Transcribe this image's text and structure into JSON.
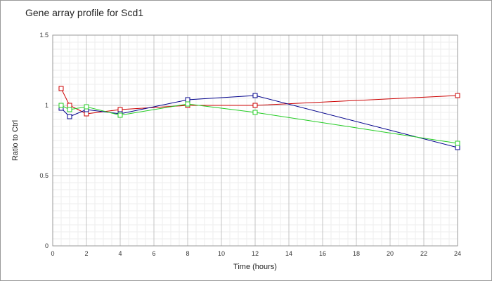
{
  "chart_data": {
    "type": "line",
    "title": "Gene array profile for Scd1",
    "xlabel": "Time (hours)",
    "ylabel": "Ratio to Ctrl",
    "xlim": [
      0,
      24
    ],
    "ylim": [
      0,
      1.5
    ],
    "x_ticks": [
      "0",
      "2",
      "4",
      "6",
      "8",
      "10",
      "12",
      "14",
      "16",
      "18",
      "20",
      "22",
      "24"
    ],
    "y_ticks": [
      "0",
      "0.5",
      "1",
      "1.5"
    ],
    "grid": true,
    "marker": "square",
    "series": [
      {
        "color": "#cc0000",
        "x": [
          0.5,
          1,
          2,
          4,
          8,
          12,
          24
        ],
        "y": [
          1.12,
          1.0,
          0.94,
          0.97,
          1.0,
          1.0,
          1.07
        ]
      },
      {
        "color": "#00008b",
        "x": [
          0.5,
          1,
          2,
          4,
          8,
          12,
          24
        ],
        "y": [
          0.98,
          0.92,
          0.97,
          0.94,
          1.04,
          1.07,
          0.7
        ]
      },
      {
        "color": "#22cc22",
        "x": [
          0.5,
          1,
          2,
          4,
          8,
          12,
          24
        ],
        "y": [
          1.0,
          0.97,
          0.99,
          0.93,
          1.01,
          0.95,
          0.73
        ]
      }
    ]
  }
}
